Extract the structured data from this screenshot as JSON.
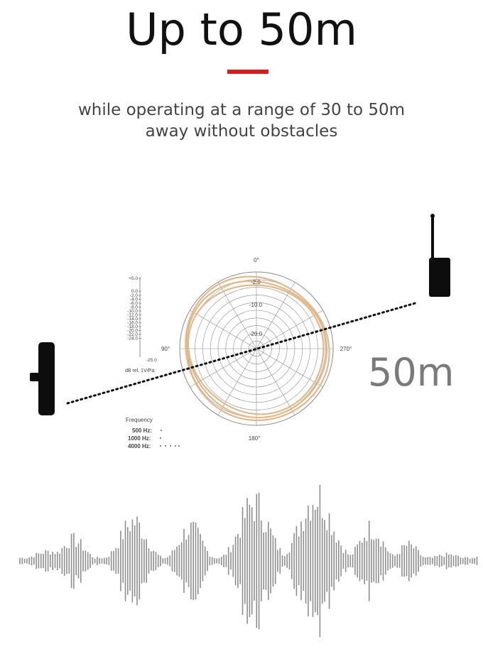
{
  "header": {
    "title": "Up to 50m",
    "subtitle_line1": "while operating at a range of 30 to 50m",
    "subtitle_line2": "away without obstacles",
    "accent_color": "#d71c1c"
  },
  "distance_label": "50m",
  "polar": {
    "angle_labels": {
      "top": "0°",
      "left": "90°",
      "right": "270°",
      "bottom": "180°"
    },
    "ring_labels": [
      "-2.0",
      "-10.0",
      "-20.0"
    ],
    "scale_labels": [
      "+5.0",
      "0.0",
      "-2.0",
      "-4.0",
      "-6.0",
      "-8.0",
      "-10.0",
      "-12.0",
      "-14.0",
      "-16.0",
      "-18.0",
      "-20.0",
      "-22.0",
      "-24.0"
    ],
    "scale_end_label": "-25.0",
    "unit_label": "dB rel. 1V/Pa",
    "frequency_title": "Frequency",
    "frequencies": [
      "500 Hz:",
      "1000 Hz:",
      "4000 Hz:"
    ],
    "curve_color": "#e0b88a"
  },
  "icons": {
    "left": "clip-microphone-icon",
    "right": "antenna-receiver-icon"
  }
}
